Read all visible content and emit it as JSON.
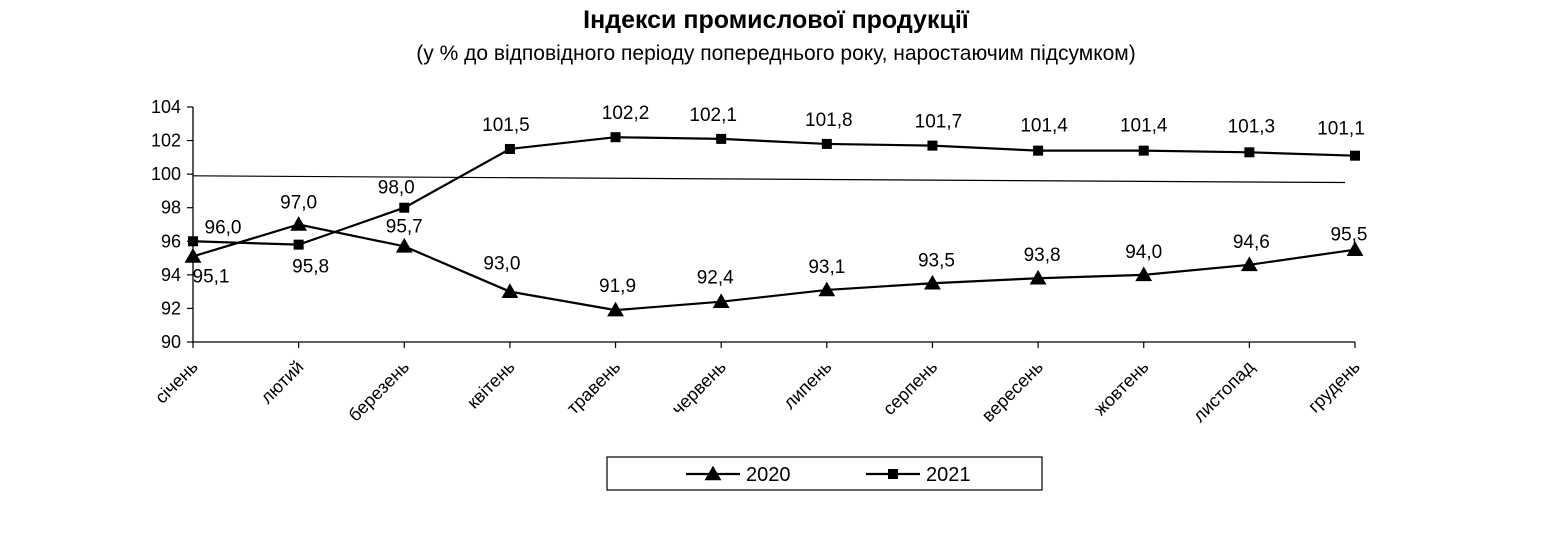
{
  "chart_data": {
    "type": "line",
    "title": "Індекси промислової продукції",
    "subtitle": "(у % до відповідного періоду попереднього року, наростаючим підсумком)",
    "categories": [
      "січень",
      "лютий",
      "березень",
      "квітень",
      "травень",
      "червень",
      "липень",
      "серпень",
      "вересень",
      "жовтень",
      "листопад",
      "грудень"
    ],
    "ylim": [
      90,
      104
    ],
    "yticks": [
      90,
      92,
      94,
      96,
      98,
      100,
      102,
      104
    ],
    "ytick_labels": [
      "90",
      "92",
      "94",
      "96",
      "98",
      "100",
      "102",
      "104"
    ],
    "reference_line": {
      "from": 99.9,
      "to": 99.5
    },
    "series": [
      {
        "name": "2020",
        "marker": "triangle",
        "values": [
          95.1,
          97.0,
          95.7,
          93.0,
          91.9,
          92.4,
          93.1,
          93.5,
          93.8,
          94.0,
          94.6,
          95.5
        ],
        "labels": [
          "95,1",
          "97,0",
          "95,7",
          "93,0",
          "91,9",
          "92,4",
          "93,1",
          "93,5",
          "93,8",
          "94,0",
          "94,6",
          "95,5"
        ]
      },
      {
        "name": "2021",
        "marker": "square",
        "values": [
          96.0,
          95.8,
          98.0,
          101.5,
          102.2,
          102.1,
          101.8,
          101.7,
          101.4,
          101.4,
          101.3,
          101.1
        ],
        "labels": [
          "96,0",
          "95,8",
          "98,0",
          "101,5",
          "102,2",
          "102,1",
          "101,8",
          "101,7",
          "101,4",
          "101,4",
          "101,3",
          "101,1"
        ]
      }
    ],
    "legend": "bottom",
    "grid": false,
    "line_color": "#000000"
  }
}
